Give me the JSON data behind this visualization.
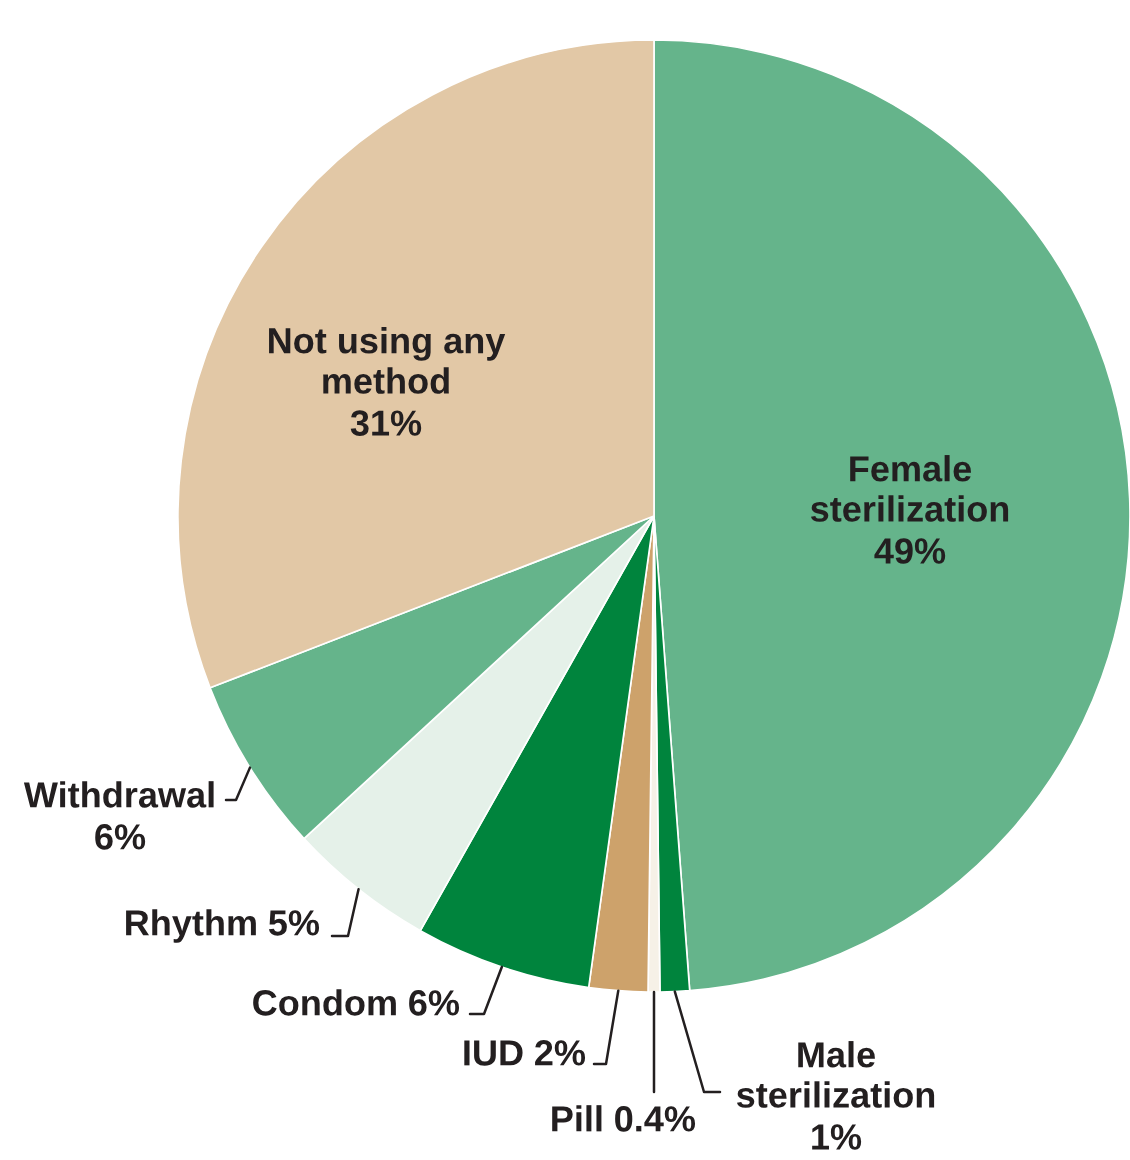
{
  "chart_data": {
    "type": "pie",
    "categories": [
      "Female\nsterilization",
      "Male\nsterilization",
      "Pill",
      "IUD",
      "Condom",
      "Rhythm",
      "Withdrawal",
      "Not using any\nmethod"
    ],
    "values": [
      49,
      1,
      0.4,
      2,
      6,
      5,
      6,
      31
    ],
    "value_labels": [
      "49%",
      "1%",
      "0.4%",
      "2%",
      "6%",
      "5%",
      "6%",
      "31%"
    ],
    "colors": [
      "#65b48b",
      "#00843d",
      "#f6f1e7",
      "#cda26b",
      "#00843d",
      "#e5f1e9",
      "#65b48b",
      "#e2c8a6"
    ]
  }
}
